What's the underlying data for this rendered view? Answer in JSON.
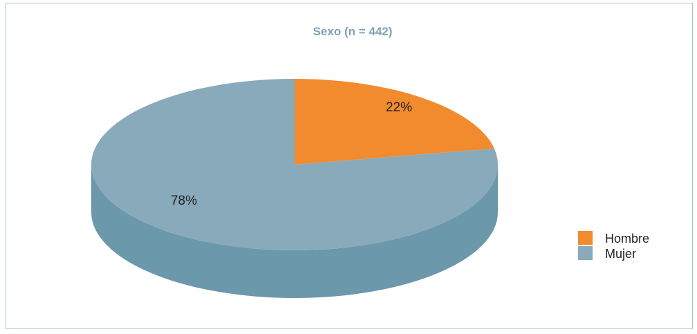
{
  "chart_data": {
    "type": "pie",
    "title": "Sexo (n = 442)",
    "title_color": "#7fa2b4",
    "legend_position": "right",
    "slices": [
      {
        "name": "Hombre",
        "value": 22,
        "label": "22%",
        "color": "#f28a2e",
        "side_color": "#d97a27"
      },
      {
        "name": "Mujer",
        "value": 78,
        "label": "78%",
        "color": "#88aabb",
        "side_color": "#6b98aa"
      }
    ]
  }
}
